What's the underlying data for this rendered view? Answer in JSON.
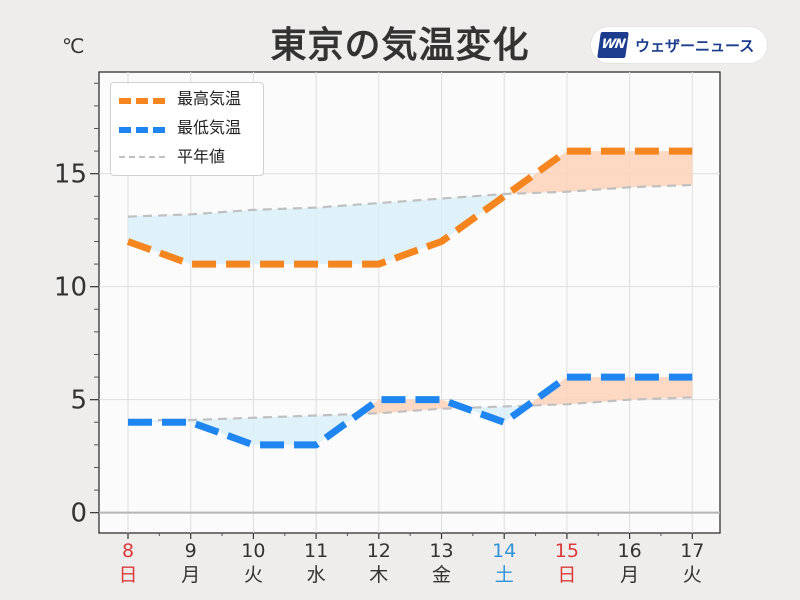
{
  "header": {
    "title": "東京の気温変化",
    "unit": "℃"
  },
  "brand": {
    "logo_text": "WN",
    "name": "ウェザーニュース"
  },
  "colors": {
    "high": "#f5861f",
    "low": "#1f85f0",
    "normal": "#c0c0c0",
    "below_fill": "#d9eef8",
    "above_fill": "#fdd2b8",
    "sunday_red": "#d93a3a",
    "saturday_blue": "#2f93d8",
    "text": "#333333"
  },
  "chart_data": {
    "type": "line",
    "title": "東京の気温変化",
    "ylabel": "℃",
    "ylim": [
      -0.9,
      19.5
    ],
    "yticks": [
      0,
      5,
      10,
      15
    ],
    "grid": true,
    "legend_position": "top-left",
    "categories": [
      {
        "day": "8",
        "weekday": "日",
        "kind": "sunday"
      },
      {
        "day": "9",
        "weekday": "月",
        "kind": "weekday"
      },
      {
        "day": "10",
        "weekday": "火",
        "kind": "weekday"
      },
      {
        "day": "11",
        "weekday": "水",
        "kind": "weekday"
      },
      {
        "day": "12",
        "weekday": "木",
        "kind": "weekday"
      },
      {
        "day": "13",
        "weekday": "金",
        "kind": "weekday"
      },
      {
        "day": "14",
        "weekday": "土",
        "kind": "saturday"
      },
      {
        "day": "15",
        "weekday": "日",
        "kind": "holiday"
      },
      {
        "day": "16",
        "weekday": "月",
        "kind": "weekday"
      },
      {
        "day": "17",
        "weekday": "火",
        "kind": "weekday"
      }
    ],
    "series": [
      {
        "name": "最高気温",
        "key": "high",
        "style": "dashed-thick",
        "values": [
          12,
          11,
          11,
          11,
          11,
          12,
          14,
          16,
          16,
          16
        ],
        "normal": [
          13.1,
          13.2,
          13.4,
          13.5,
          13.7,
          13.9,
          14.1,
          14.2,
          14.4,
          14.5
        ]
      },
      {
        "name": "最低気温",
        "key": "low",
        "style": "dashed-thick",
        "values": [
          4,
          4,
          3,
          3,
          5,
          5,
          4,
          6,
          6,
          6
        ],
        "normal": [
          4.1,
          4.1,
          4.2,
          4.3,
          4.4,
          4.6,
          4.7,
          4.8,
          5.0,
          5.1
        ]
      }
    ],
    "normal_series_name": "平年値"
  }
}
